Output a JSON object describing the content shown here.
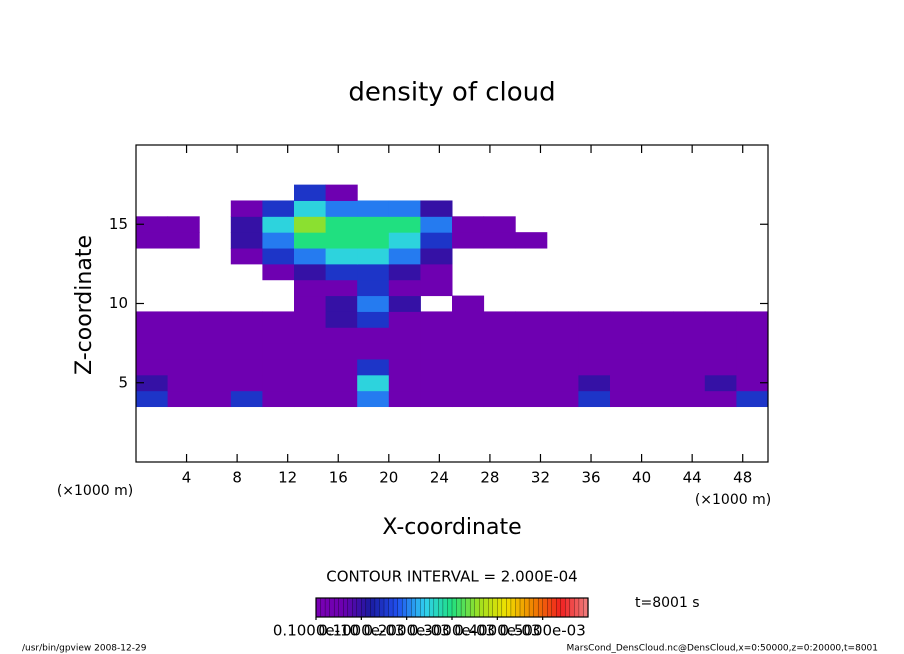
{
  "chart_data": {
    "type": "contour",
    "title": "density of cloud",
    "x_label": "X-coordinate",
    "y_label": "Z-coordinate",
    "x_unit": "(×1000 m)",
    "y_unit": "(×1000 m)",
    "xlim": [
      0,
      50
    ],
    "ylim": [
      0,
      20
    ],
    "xticks": [
      4,
      8,
      12,
      16,
      20,
      24,
      28,
      32,
      36,
      40,
      44,
      48
    ],
    "yticks": [
      5,
      10,
      15
    ],
    "x": [
      1.25,
      3.75,
      6.25,
      8.75,
      11.25,
      13.75,
      16.25,
      18.75,
      21.25,
      23.75,
      26.25,
      28.75,
      31.25,
      33.75,
      36.25,
      38.75,
      41.25,
      43.75,
      46.25,
      48.75
    ],
    "y": [
      4,
      5,
      6,
      7,
      8,
      9,
      10,
      11,
      12,
      13,
      14,
      15,
      16,
      17,
      18
    ],
    "z": [
      [
        0.00015,
        5e-05,
        5e-05,
        0.00015,
        5e-05,
        5e-05,
        5e-05,
        0.0002,
        5e-05,
        5e-05,
        5e-05,
        5e-05,
        5e-05,
        5e-05,
        0.00015,
        5e-05,
        5e-05,
        5e-05,
        5e-05,
        0.00015
      ],
      [
        0.0001,
        5e-05,
        5e-05,
        5e-05,
        5e-05,
        5e-05,
        5e-05,
        0.00025,
        5e-05,
        5e-05,
        5e-05,
        5e-05,
        5e-05,
        5e-05,
        0.0001,
        5e-05,
        5e-05,
        5e-05,
        0.0001,
        5e-05
      ],
      [
        5e-05,
        5e-05,
        5e-05,
        5e-05,
        5e-05,
        5e-05,
        5e-05,
        0.00015,
        5e-05,
        5e-05,
        5e-05,
        5e-05,
        5e-05,
        5e-05,
        5e-05,
        5e-05,
        5e-05,
        5e-05,
        5e-05,
        5e-05
      ],
      [
        5e-05,
        5e-05,
        5e-05,
        5e-05,
        5e-05,
        5e-05,
        5e-05,
        5e-05,
        5e-05,
        5e-05,
        5e-05,
        5e-05,
        5e-05,
        5e-05,
        5e-05,
        5e-05,
        5e-05,
        5e-05,
        5e-05,
        5e-05
      ],
      [
        5e-05,
        5e-05,
        5e-05,
        5e-05,
        5e-05,
        5e-05,
        5e-05,
        5e-05,
        5e-05,
        5e-05,
        5e-05,
        5e-05,
        5e-05,
        5e-05,
        5e-05,
        5e-05,
        5e-05,
        5e-05,
        5e-05,
        5e-05
      ],
      [
        5e-05,
        5e-05,
        5e-05,
        5e-05,
        5e-05,
        5e-05,
        0.0001,
        0.00015,
        5e-05,
        5e-05,
        5e-05,
        5e-05,
        5e-05,
        5e-05,
        5e-05,
        5e-05,
        5e-05,
        5e-05,
        5e-05,
        5e-05
      ],
      [
        null,
        null,
        null,
        null,
        null,
        5e-05,
        0.0001,
        0.0002,
        0.0001,
        null,
        5e-05,
        null,
        null,
        null,
        null,
        null,
        null,
        null,
        null,
        null
      ],
      [
        null,
        null,
        null,
        null,
        null,
        5e-05,
        5e-05,
        0.00015,
        5e-05,
        5e-05,
        null,
        null,
        null,
        null,
        null,
        null,
        null,
        null,
        null,
        null
      ],
      [
        null,
        null,
        null,
        null,
        5e-05,
        0.0001,
        0.00015,
        0.00015,
        0.0001,
        5e-05,
        null,
        null,
        null,
        null,
        null,
        null,
        null,
        null,
        null,
        null
      ],
      [
        null,
        null,
        null,
        5e-05,
        0.00015,
        0.0002,
        0.00025,
        0.00025,
        0.0002,
        0.0001,
        null,
        null,
        null,
        null,
        null,
        null,
        null,
        null,
        null,
        null
      ],
      [
        5e-05,
        5e-05,
        null,
        0.0001,
        0.0002,
        0.0003,
        0.0003,
        0.0003,
        0.00025,
        0.00015,
        5e-05,
        5e-05,
        5e-05,
        null,
        null,
        null,
        null,
        null,
        null,
        null
      ],
      [
        5e-05,
        5e-05,
        null,
        0.0001,
        0.00025,
        0.00035,
        0.0003,
        0.0003,
        0.0003,
        0.0002,
        5e-05,
        5e-05,
        null,
        null,
        null,
        null,
        null,
        null,
        null,
        null
      ],
      [
        null,
        null,
        null,
        5e-05,
        0.00015,
        0.00025,
        0.0002,
        0.0002,
        0.0002,
        0.0001,
        null,
        null,
        null,
        null,
        null,
        null,
        null,
        null,
        null,
        null
      ],
      [
        null,
        null,
        null,
        null,
        null,
        0.00015,
        5e-05,
        null,
        null,
        null,
        null,
        null,
        null,
        null,
        null,
        null,
        null,
        null,
        null,
        null
      ],
      [
        null,
        null,
        null,
        null,
        null,
        null,
        null,
        null,
        null,
        null,
        null,
        null,
        null,
        null,
        null,
        null,
        null,
        null,
        null,
        null
      ]
    ],
    "clim": [
      0,
      0.0006
    ],
    "palette": [
      "#7a00b4",
      "#6c00b0",
      "#1a1aa0",
      "#2050f0",
      "#30d0f0",
      "#20e080",
      "#a0e020",
      "#f0e000",
      "#f08000",
      "#f02020",
      "#f08080"
    ],
    "colorbar_ticks": [
      {
        "value": 1e-11,
        "label": "0.1000e-10"
      },
      {
        "value": 0.0001,
        "label": "0.1000e-03"
      },
      {
        "value": 0.0002,
        "label": "0.2000e-03"
      },
      {
        "value": 0.0003,
        "label": "0.3000e-03"
      },
      {
        "value": 0.0004,
        "label": "0.4000e-03"
      },
      {
        "value": 0.0005,
        "label": "0.5000e-03"
      }
    ],
    "contour_note": "CONTOUR INTERVAL = 2.000E-04",
    "time_label": "t=8001 s",
    "footer_left": "/usr/bin/gpview   2008-12-29",
    "footer_right": "MarsCond_DensCloud.nc@DensCloud,x=0:50000,z=0:20000,t=8001"
  }
}
